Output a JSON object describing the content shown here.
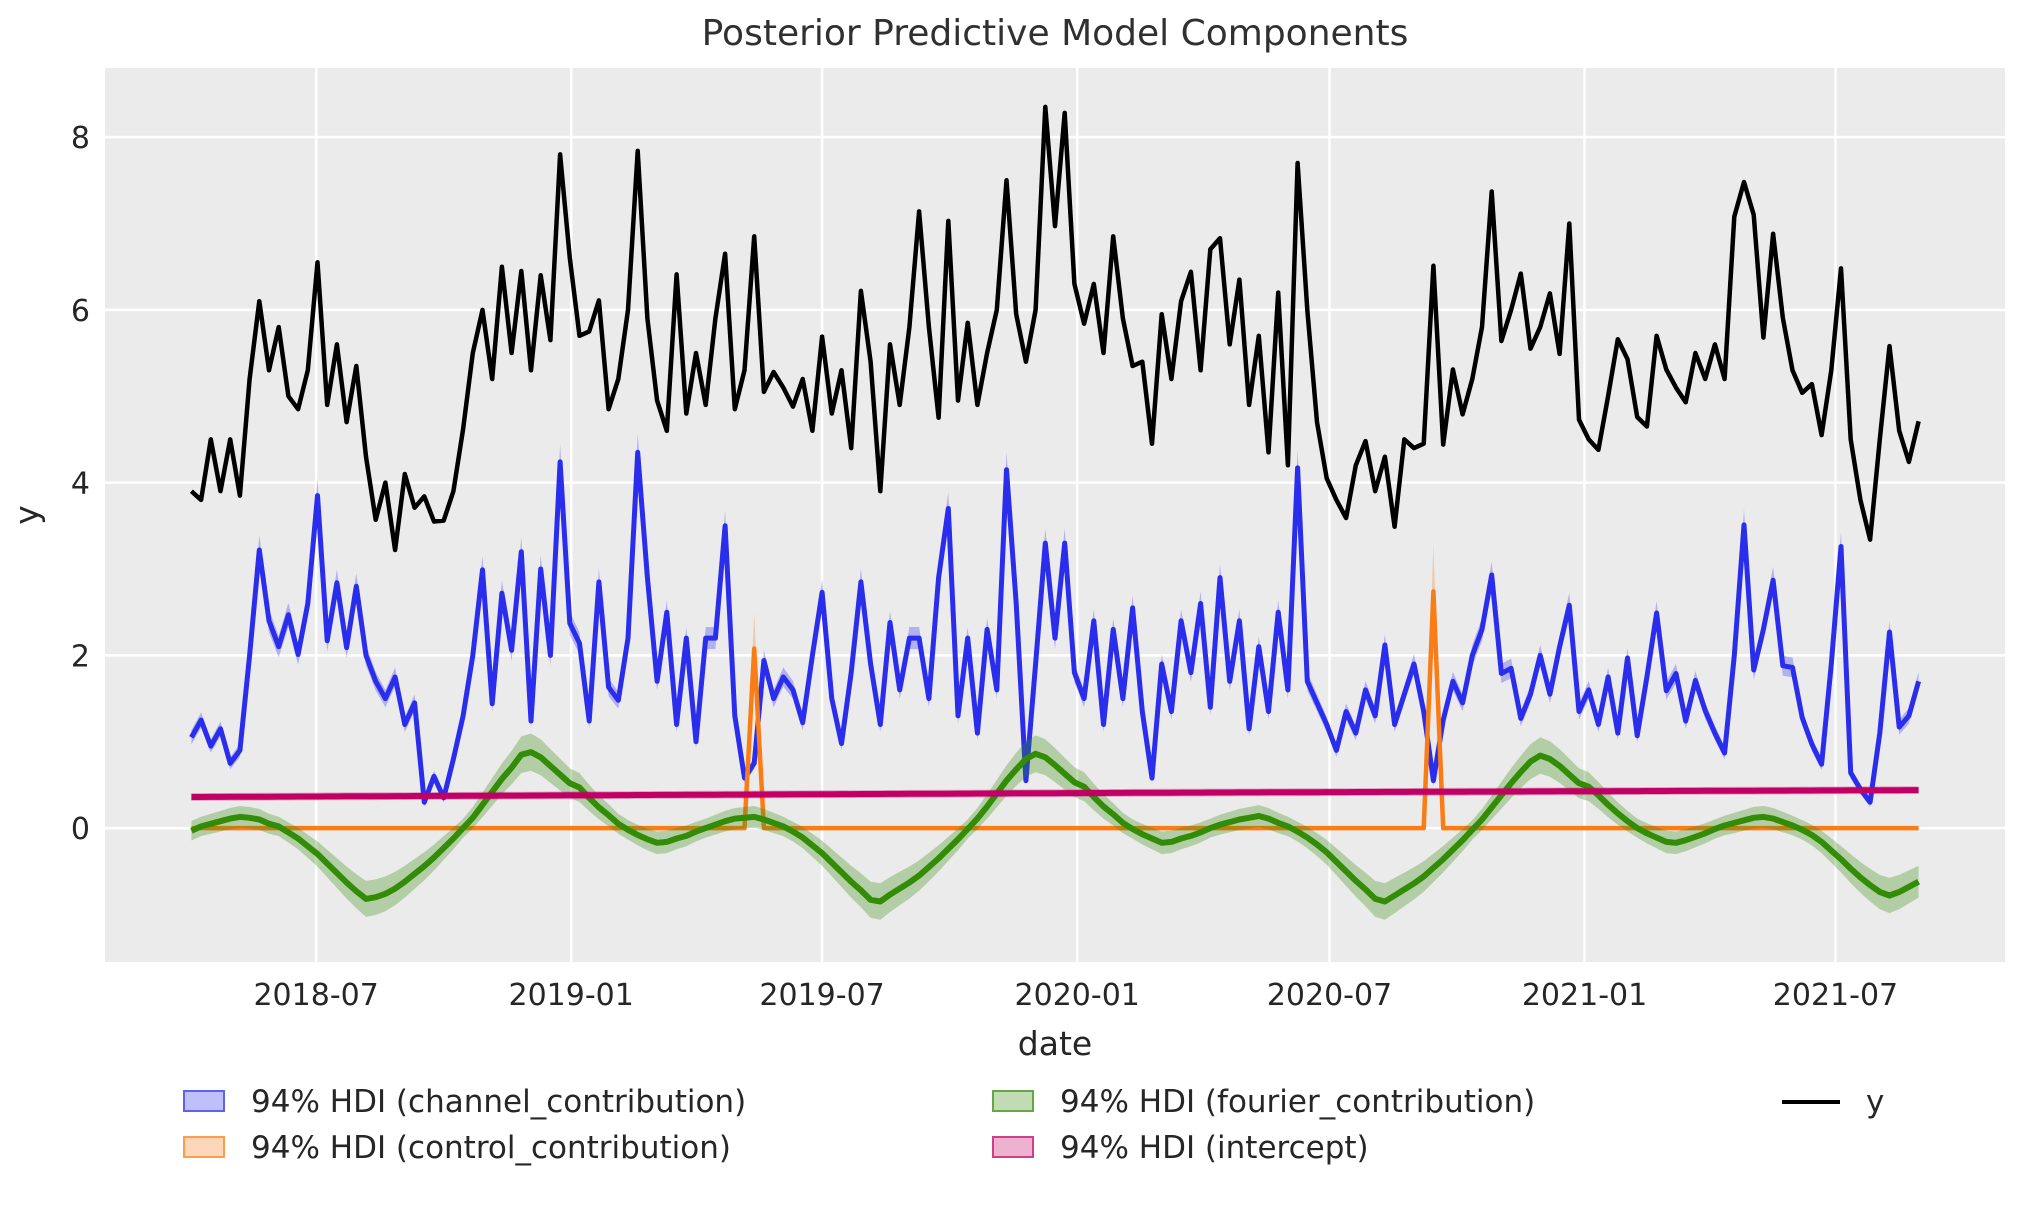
{
  "title": "Posterior Predictive Model Components",
  "axes": {
    "xlabel": "date",
    "ylabel": "y",
    "background": "#ebebeb",
    "grid_color": "#ffffff",
    "text_color": "#262626"
  },
  "legend": {
    "items": [
      {
        "name": "channel",
        "label": "94% HDI (channel_contribution)",
        "color": "#2a2eec",
        "swatch": "patch"
      },
      {
        "name": "control",
        "label": "94% HDI (control_contribution)",
        "color": "#fa7c17",
        "swatch": "patch"
      },
      {
        "name": "fourier",
        "label": "94% HDI (fourier_contribution)",
        "color": "#328c06",
        "swatch": "patch"
      },
      {
        "name": "intercept",
        "label": "94% HDI (intercept)",
        "color": "#c10065",
        "swatch": "patch"
      },
      {
        "name": "y",
        "label": "y",
        "color": "#000000",
        "swatch": "line"
      }
    ]
  },
  "chart_data": {
    "type": "line",
    "title": "Posterior Predictive Model Components",
    "xlabel": "date",
    "ylabel": "y",
    "x_start_date": "2018-04-02",
    "x_freq_days": 7,
    "n_points": 179,
    "x_axis": {
      "unit": "weeks since 2018-04-02",
      "xlim": [
        -8.9,
        186.9
      ],
      "ticks": [
        {
          "label": "2018-07",
          "week": 12.86
        },
        {
          "label": "2019-01",
          "week": 39.14
        },
        {
          "label": "2019-07",
          "week": 65.0
        },
        {
          "label": "2020-01",
          "week": 91.29
        },
        {
          "label": "2020-07",
          "week": 117.29
        },
        {
          "label": "2021-01",
          "week": 143.57
        },
        {
          "label": "2021-07",
          "week": 169.43
        }
      ]
    },
    "y_axis": {
      "ticks": [
        0,
        2,
        4,
        6,
        8
      ],
      "ylim": [
        -1.55,
        8.8
      ],
      "grid": true
    },
    "hdi_probability": "94%",
    "series": [
      {
        "name": "y",
        "kind": "line",
        "color": "#000000",
        "linewidth": 4.5,
        "zorder": 9,
        "values": [
          3.9,
          3.8,
          4.5,
          3.9,
          4.5,
          3.85,
          5.2,
          6.1,
          5.3,
          5.8,
          5.0,
          4.85,
          5.3,
          6.55,
          4.9,
          5.6,
          4.7,
          5.35,
          4.3,
          3.57,
          4.0,
          3.22,
          4.1,
          3.71,
          3.84,
          3.55,
          3.56,
          3.9,
          4.62,
          5.5,
          6.0,
          5.2,
          6.5,
          5.5,
          6.45,
          5.3,
          6.4,
          5.65,
          7.8,
          6.6,
          5.7,
          5.75,
          6.11,
          4.85,
          5.2,
          6.0,
          7.84,
          5.9,
          4.95,
          4.6,
          6.41,
          4.8,
          5.5,
          4.9,
          5.9,
          6.65,
          4.85,
          5.3,
          6.85,
          5.05,
          5.28,
          5.1,
          4.88,
          5.2,
          4.6,
          5.69,
          4.8,
          5.3,
          4.4,
          6.22,
          5.4,
          3.9,
          5.6,
          4.9,
          5.8,
          7.14,
          5.8,
          4.75,
          7.03,
          4.95,
          5.85,
          4.9,
          5.5,
          6.0,
          7.5,
          5.95,
          5.4,
          6.0,
          8.35,
          6.97,
          8.28,
          6.3,
          5.84,
          6.3,
          5.5,
          6.85,
          5.9,
          5.35,
          5.4,
          4.45,
          5.95,
          5.2,
          6.1,
          6.44,
          5.3,
          6.7,
          6.83,
          5.6,
          6.35,
          4.9,
          5.7,
          4.35,
          6.2,
          4.2,
          7.7,
          6.0,
          4.7,
          4.05,
          3.8,
          3.59,
          4.2,
          4.48,
          3.9,
          4.3,
          3.49,
          4.5,
          4.4,
          4.45,
          6.51,
          4.44,
          5.31,
          4.79,
          5.2,
          5.8,
          7.37,
          5.64,
          6.0,
          6.42,
          5.55,
          5.8,
          6.19,
          5.49,
          7.0,
          4.73,
          4.5,
          4.38,
          5.0,
          5.66,
          5.43,
          4.76,
          4.65,
          5.7,
          5.31,
          5.1,
          4.93,
          5.5,
          5.2,
          5.6,
          5.2,
          7.08,
          7.48,
          7.1,
          5.68,
          6.88,
          5.91,
          5.3,
          5.04,
          5.14,
          4.55,
          5.3,
          6.48,
          4.5,
          3.8,
          3.34,
          4.5,
          5.58,
          4.6,
          4.24,
          4.71
        ]
      },
      {
        "name": "channel_contribution",
        "kind": "mean_with_hdi",
        "color": "#2a2eec",
        "linewidth": 5,
        "band_alpha": 0.3,
        "zorder": 5,
        "hdi_halfwidth_rule": {
          "base": 0.04,
          "rel": 0.04
        },
        "values": [
          1.05,
          1.25,
          0.95,
          1.15,
          0.75,
          0.9,
          2.0,
          3.22,
          2.4,
          2.1,
          2.47,
          2.01,
          2.6,
          3.85,
          2.17,
          2.84,
          2.09,
          2.8,
          2.0,
          1.7,
          1.5,
          1.75,
          1.2,
          1.45,
          0.3,
          0.6,
          0.35,
          0.8,
          1.3,
          2.0,
          2.99,
          1.44,
          2.72,
          2.06,
          3.2,
          1.24,
          3.0,
          2.0,
          4.24,
          2.37,
          2.14,
          1.24,
          2.85,
          1.63,
          1.48,
          2.2,
          4.35,
          2.9,
          1.7,
          2.5,
          1.2,
          2.2,
          1.0,
          2.2,
          2.2,
          3.5,
          1.3,
          0.58,
          0.75,
          1.94,
          1.5,
          1.75,
          1.6,
          1.22,
          2.0,
          2.73,
          1.5,
          0.98,
          1.8,
          2.85,
          1.9,
          1.2,
          2.38,
          1.6,
          2.2,
          2.2,
          1.5,
          2.9,
          3.7,
          1.3,
          2.2,
          1.1,
          2.3,
          1.6,
          4.15,
          2.6,
          0.55,
          1.9,
          3.3,
          2.2,
          3.3,
          1.8,
          1.5,
          2.4,
          1.2,
          2.3,
          1.5,
          2.55,
          1.35,
          0.58,
          1.9,
          1.35,
          2.4,
          1.8,
          2.6,
          1.4,
          2.9,
          1.7,
          2.4,
          1.15,
          2.1,
          1.35,
          2.5,
          1.6,
          4.17,
          1.7,
          1.45,
          1.2,
          0.9,
          1.35,
          1.1,
          1.6,
          1.3,
          2.12,
          1.2,
          1.55,
          1.9,
          1.35,
          0.55,
          1.25,
          1.7,
          1.45,
          2.0,
          2.3,
          2.93,
          1.79,
          1.85,
          1.27,
          1.55,
          2.0,
          1.55,
          2.1,
          2.58,
          1.35,
          1.6,
          1.2,
          1.75,
          1.1,
          1.97,
          1.07,
          1.75,
          2.49,
          1.59,
          1.79,
          1.24,
          1.71,
          1.36,
          1.1,
          0.87,
          2.0,
          3.51,
          1.83,
          2.3,
          2.87,
          1.88,
          1.86,
          1.28,
          0.97,
          0.74,
          1.9,
          3.26,
          0.64,
          0.45,
          0.3,
          1.1,
          2.27,
          1.17,
          1.3,
          1.7
        ]
      },
      {
        "name": "control_contribution",
        "kind": "mean_with_hdi",
        "color": "#fa7c17",
        "linewidth": 4.5,
        "band_alpha": 0.3,
        "zorder": 6,
        "hdi_halfwidth_rule": {
          "base": 0.0,
          "rel": 0.2
        },
        "baseline": 0.0,
        "spikes": [
          {
            "index": 58,
            "date": "2019-05-13",
            "value": 2.08
          },
          {
            "index": 128,
            "date": "2020-09-14",
            "value": 2.74
          }
        ]
      },
      {
        "name": "fourier_contribution",
        "kind": "mean_with_hdi",
        "color": "#328c06",
        "linewidth": 6,
        "band_alpha": 0.3,
        "zorder": 7,
        "hdi_halfwidth_rule": {
          "base": 0.11,
          "rel": 0.12
        },
        "values": [
          -0.03,
          0.02,
          0.05,
          0.08,
          0.11,
          0.13,
          0.12,
          0.1,
          0.05,
          0.02,
          -0.05,
          -0.12,
          -0.21,
          -0.3,
          -0.41,
          -0.52,
          -0.63,
          -0.73,
          -0.82,
          -0.8,
          -0.76,
          -0.7,
          -0.62,
          -0.53,
          -0.44,
          -0.34,
          -0.23,
          -0.12,
          0.0,
          0.12,
          0.27,
          0.42,
          0.57,
          0.7,
          0.85,
          0.88,
          0.82,
          0.72,
          0.62,
          0.52,
          0.47,
          0.35,
          0.24,
          0.15,
          0.05,
          -0.02,
          -0.08,
          -0.13,
          -0.17,
          -0.16,
          -0.12,
          -0.09,
          -0.04,
          0.0,
          0.04,
          0.08,
          0.11,
          0.12,
          0.13,
          0.1,
          0.06,
          0.02,
          -0.04,
          -0.11,
          -0.2,
          -0.29,
          -0.4,
          -0.51,
          -0.62,
          -0.72,
          -0.83,
          -0.85,
          -0.77,
          -0.7,
          -0.63,
          -0.55,
          -0.45,
          -0.35,
          -0.24,
          -0.13,
          -0.01,
          0.11,
          0.25,
          0.4,
          0.55,
          0.68,
          0.8,
          0.86,
          0.82,
          0.73,
          0.63,
          0.53,
          0.48,
          0.36,
          0.25,
          0.16,
          0.06,
          -0.01,
          -0.07,
          -0.12,
          -0.17,
          -0.16,
          -0.12,
          -0.09,
          -0.05,
          0.0,
          0.04,
          0.07,
          0.1,
          0.12,
          0.14,
          0.11,
          0.06,
          0.02,
          -0.04,
          -0.11,
          -0.19,
          -0.28,
          -0.39,
          -0.5,
          -0.61,
          -0.71,
          -0.82,
          -0.85,
          -0.78,
          -0.71,
          -0.64,
          -0.56,
          -0.46,
          -0.36,
          -0.25,
          -0.14,
          -0.02,
          0.1,
          0.24,
          0.38,
          0.52,
          0.65,
          0.77,
          0.84,
          0.8,
          0.72,
          0.62,
          0.52,
          0.48,
          0.38,
          0.27,
          0.17,
          0.08,
          0.0,
          -0.06,
          -0.11,
          -0.16,
          -0.17,
          -0.14,
          -0.1,
          -0.06,
          -0.01,
          0.03,
          0.06,
          0.09,
          0.12,
          0.13,
          0.11,
          0.07,
          0.03,
          -0.02,
          -0.08,
          -0.16,
          -0.26,
          -0.36,
          -0.47,
          -0.57,
          -0.66,
          -0.74,
          -0.78,
          -0.74,
          -0.68,
          -0.62
        ]
      },
      {
        "name": "intercept",
        "kind": "mean_with_hdi",
        "color": "#c10065",
        "linewidth": 6,
        "band_alpha": 0.3,
        "zorder": 8,
        "hdi_halfwidth_rule": {
          "base": 0.045,
          "rel": 0.0
        },
        "anchors": [
          [
            0,
            0.36
          ],
          [
            100,
            0.41
          ],
          [
            178,
            0.44
          ]
        ]
      }
    ]
  }
}
